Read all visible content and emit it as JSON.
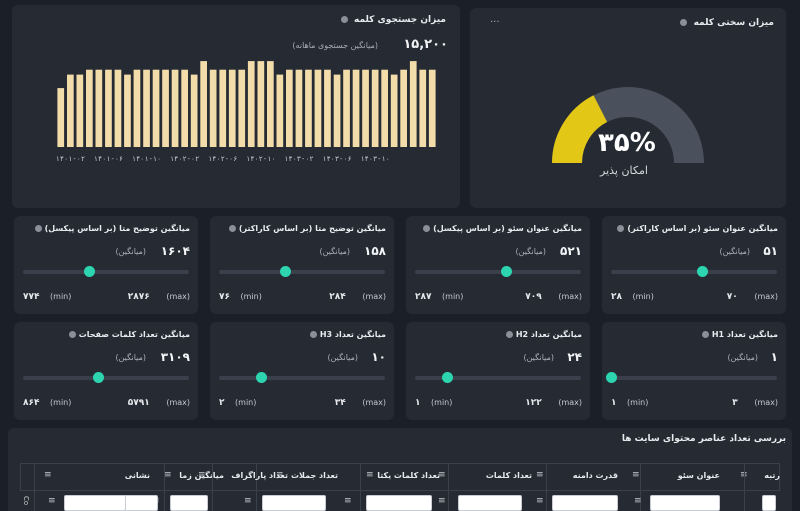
{
  "search_volume": {
    "title": "میزان جستجوی کلمه",
    "value": "۱۵,۲۰۰",
    "subtitle": "(میانگین جستجوی ماهانه)"
  },
  "chart_data": {
    "type": "bar",
    "title": "",
    "xlabel": "",
    "ylabel": "",
    "tick_labels": [
      "۱۴۰۱-۰۲",
      "۱۴۰۱-۰۶",
      "۱۴۰۱-۱۰",
      "۱۴۰۲-۰۲",
      "۱۴۰۲-۰۶",
      "۱۴۰۲-۱۰",
      "۱۴۰۳-۰۲",
      "۱۴۰۳-۰۶",
      "۱۴۰۳-۱۰"
    ],
    "values": [
      48,
      59,
      59,
      63,
      63,
      63,
      63,
      59,
      63,
      63,
      63,
      63,
      63,
      63,
      59,
      70,
      63,
      63,
      63,
      63,
      70,
      70,
      70,
      59,
      63,
      63,
      63,
      63,
      63,
      59,
      63,
      63,
      63,
      63,
      63,
      59,
      63,
      70,
      63,
      63
    ]
  },
  "difficulty": {
    "title": "میزان سختی کلمه",
    "more": "...",
    "percent": "۳۵%",
    "percent_value": 35,
    "label": "امکان پذیر",
    "fill_color": "#e3c716",
    "track_color": "#4a505c"
  },
  "metrics_row1": [
    {
      "title": "میانگین عنوان سئو (بر اساس کاراکتر)",
      "value": "۵۱",
      "sub": "(میانگین)",
      "min": "۲۸",
      "max": "۷۰",
      "position": 0.55
    },
    {
      "title": "میانگین عنوان سئو (بر اساس پیکسل)",
      "value": "۵۲۱",
      "sub": "(میانگین)",
      "min": "۲۸۷",
      "max": "۷۰۹",
      "position": 0.55
    },
    {
      "title": "میانگین توضیح متا (بر اساس کاراکتر)",
      "value": "۱۵۸",
      "sub": "(میانگین)",
      "min": "۷۶",
      "max": "۲۸۴",
      "position": 0.4
    },
    {
      "title": "میانگین توضیح متا (بر اساس پیکسل)",
      "value": "۱۶۰۴",
      "sub": "(میانگین)",
      "min": "۷۷۴",
      "max": "۲۸۷۶",
      "position": 0.4
    }
  ],
  "metrics_row2": [
    {
      "title": "میانگین تعداد H1",
      "value": "۱",
      "sub": "(میانگین)",
      "min": "۱",
      "max": "۳",
      "position": 0.0
    },
    {
      "title": "میانگین تعداد H2",
      "value": "۲۴",
      "sub": "(میانگین)",
      "min": "۱",
      "max": "۱۲۲",
      "position": 0.19
    },
    {
      "title": "میانگین تعداد H3",
      "value": "۱۰",
      "sub": "(میانگین)",
      "min": "۲",
      "max": "۳۴",
      "position": 0.25
    },
    {
      "title": "میانگین تعداد کلمات صفحات",
      "value": "۳۱۰۹",
      "sub": "(میانگین)",
      "min": "۸۶۴",
      "max": "۵۷۹۱",
      "position": 0.45
    }
  ],
  "range_labels": {
    "min": "(min)",
    "max": "(max)"
  },
  "content_table": {
    "title": "بررسی تعداد عناصر محتوای سایت ها",
    "columns": [
      "رتبه",
      "عنوان سئو",
      "قدرت دامنه",
      "تعداد کلمات",
      "تعداد کلمات یکتا",
      "تعداد جملات",
      "تعداد پاراگراف",
      "میانگین زما",
      "نشانی"
    ],
    "side_label": "Co"
  }
}
